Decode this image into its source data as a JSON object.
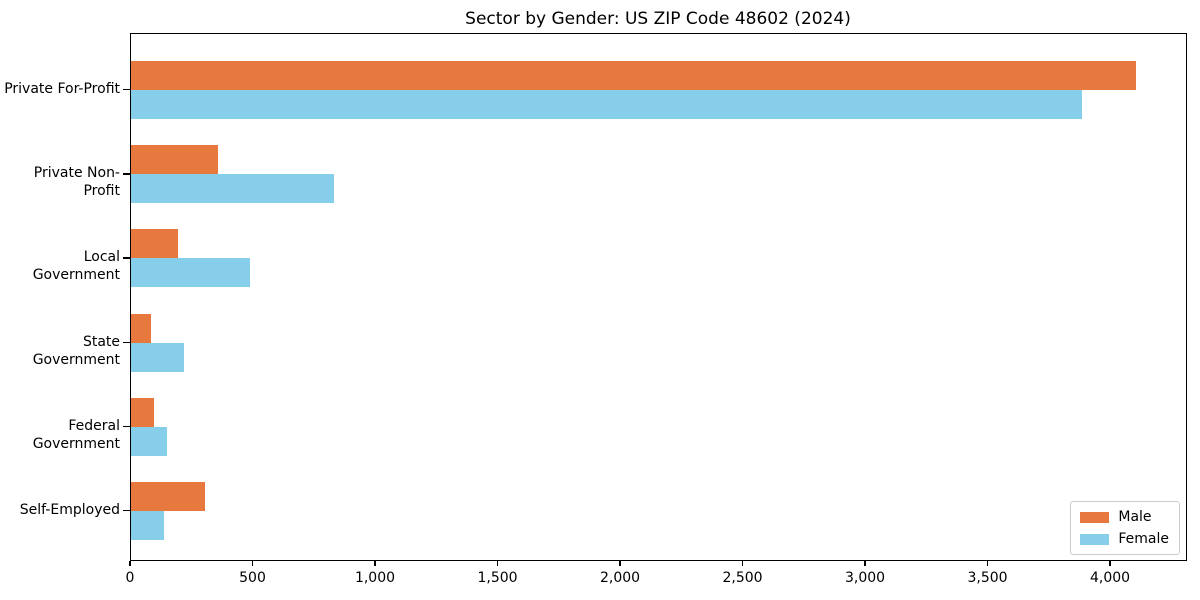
{
  "title": "Sector by Gender: US ZIP Code 48602 (2024)",
  "colors": {
    "male": "#e8793e",
    "female": "#87ceeb",
    "axis": "#000000",
    "legend_border": "#cccccc",
    "background": "#ffffff"
  },
  "chart_data": {
    "type": "bar",
    "orientation": "horizontal",
    "title": "Sector by Gender: US ZIP Code 48602 (2024)",
    "xlabel": "",
    "ylabel": "",
    "categories": [
      "Private For-Profit",
      "Private Non-Profit",
      "Local Government",
      "State Government",
      "Federal Government",
      "Self-Employed"
    ],
    "series": [
      {
        "name": "Male",
        "color": "#e8793e",
        "values": [
          4100,
          355,
          190,
          80,
          95,
          300
        ]
      },
      {
        "name": "Female",
        "color": "#87ceeb",
        "values": [
          3880,
          830,
          485,
          215,
          145,
          135
        ]
      }
    ],
    "xlim": [
      0,
      4310
    ],
    "xticks": [
      0,
      500,
      1000,
      1500,
      2000,
      2500,
      3000,
      3500,
      4000
    ],
    "xtick_labels": [
      "0",
      "500",
      "1,000",
      "1,500",
      "2,000",
      "2,500",
      "3,000",
      "3,500",
      "4,000"
    ],
    "grid": false,
    "legend": {
      "position": "lower right",
      "entries": [
        "Male",
        "Female"
      ]
    }
  }
}
